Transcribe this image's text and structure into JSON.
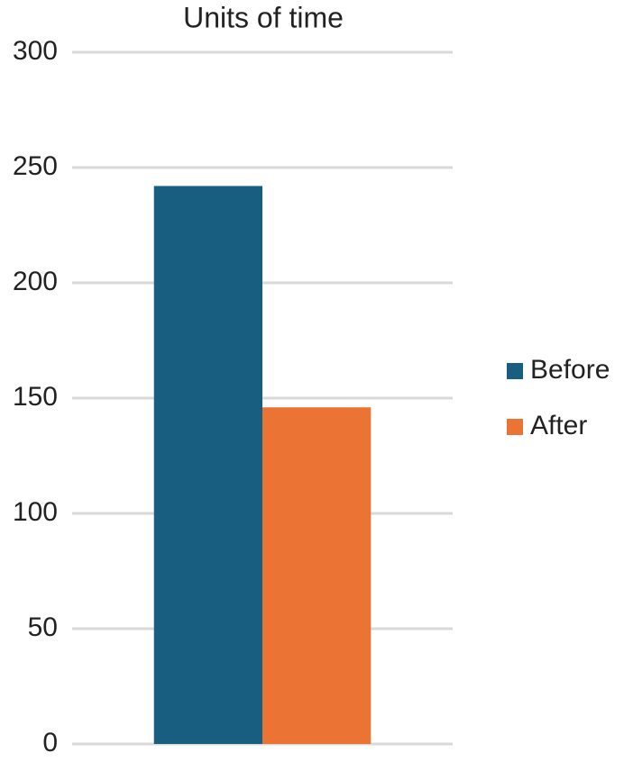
{
  "chart_data": {
    "type": "bar",
    "title": "Units of time",
    "categories": [
      null
    ],
    "series": [
      {
        "name": "Before",
        "color": "#175e80",
        "values": [
          242
        ]
      },
      {
        "name": "After",
        "color": "#eb7434",
        "values": [
          146
        ]
      }
    ],
    "ylim": [
      0,
      300
    ],
    "yticks": [
      0,
      50,
      100,
      150,
      200,
      250,
      300
    ],
    "grid": true,
    "legend": "right"
  }
}
